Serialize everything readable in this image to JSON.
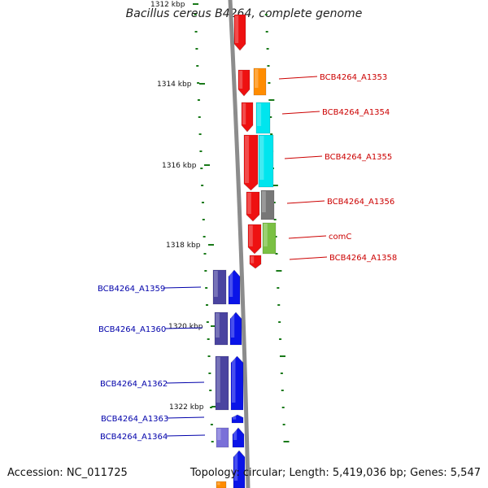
{
  "title": "Bacillus cereus B4264, complete genome",
  "accession": "Accession: NC_011725",
  "topology": "Topology: circular; Length: 5,419,036 bp; Genes: 5,547",
  "kbp_labels": [
    "1312 kbp",
    "1314 kbp",
    "1316 kbp",
    "1318 kbp",
    "1320 kbp",
    "1322 kbp"
  ],
  "right_gene_labels": [
    "BCB4264_A1353",
    "BCB4264_A1354",
    "BCB4264_A1355",
    "BCB4264_A1356",
    "comC",
    "BCB4264_A1358"
  ],
  "left_gene_labels": [
    "BCB4264_A1359",
    "BCB4264_A1360",
    "BCB4264_A1362",
    "BCB4264_A1363",
    "BCB4264_A1364"
  ],
  "colors": {
    "backbone": "#8c8c8c",
    "tick": "#1a7a1a",
    "right_label": "#cc0000",
    "left_label": "#0000aa",
    "red": "#ee1111",
    "orange": "#ff8c00",
    "cyan": "#00e5ee",
    "gray": "#777777",
    "green": "#7ac043",
    "blue": "#0a14e8",
    "slate": "#4a44a0",
    "lavender": "#7a70d8"
  }
}
